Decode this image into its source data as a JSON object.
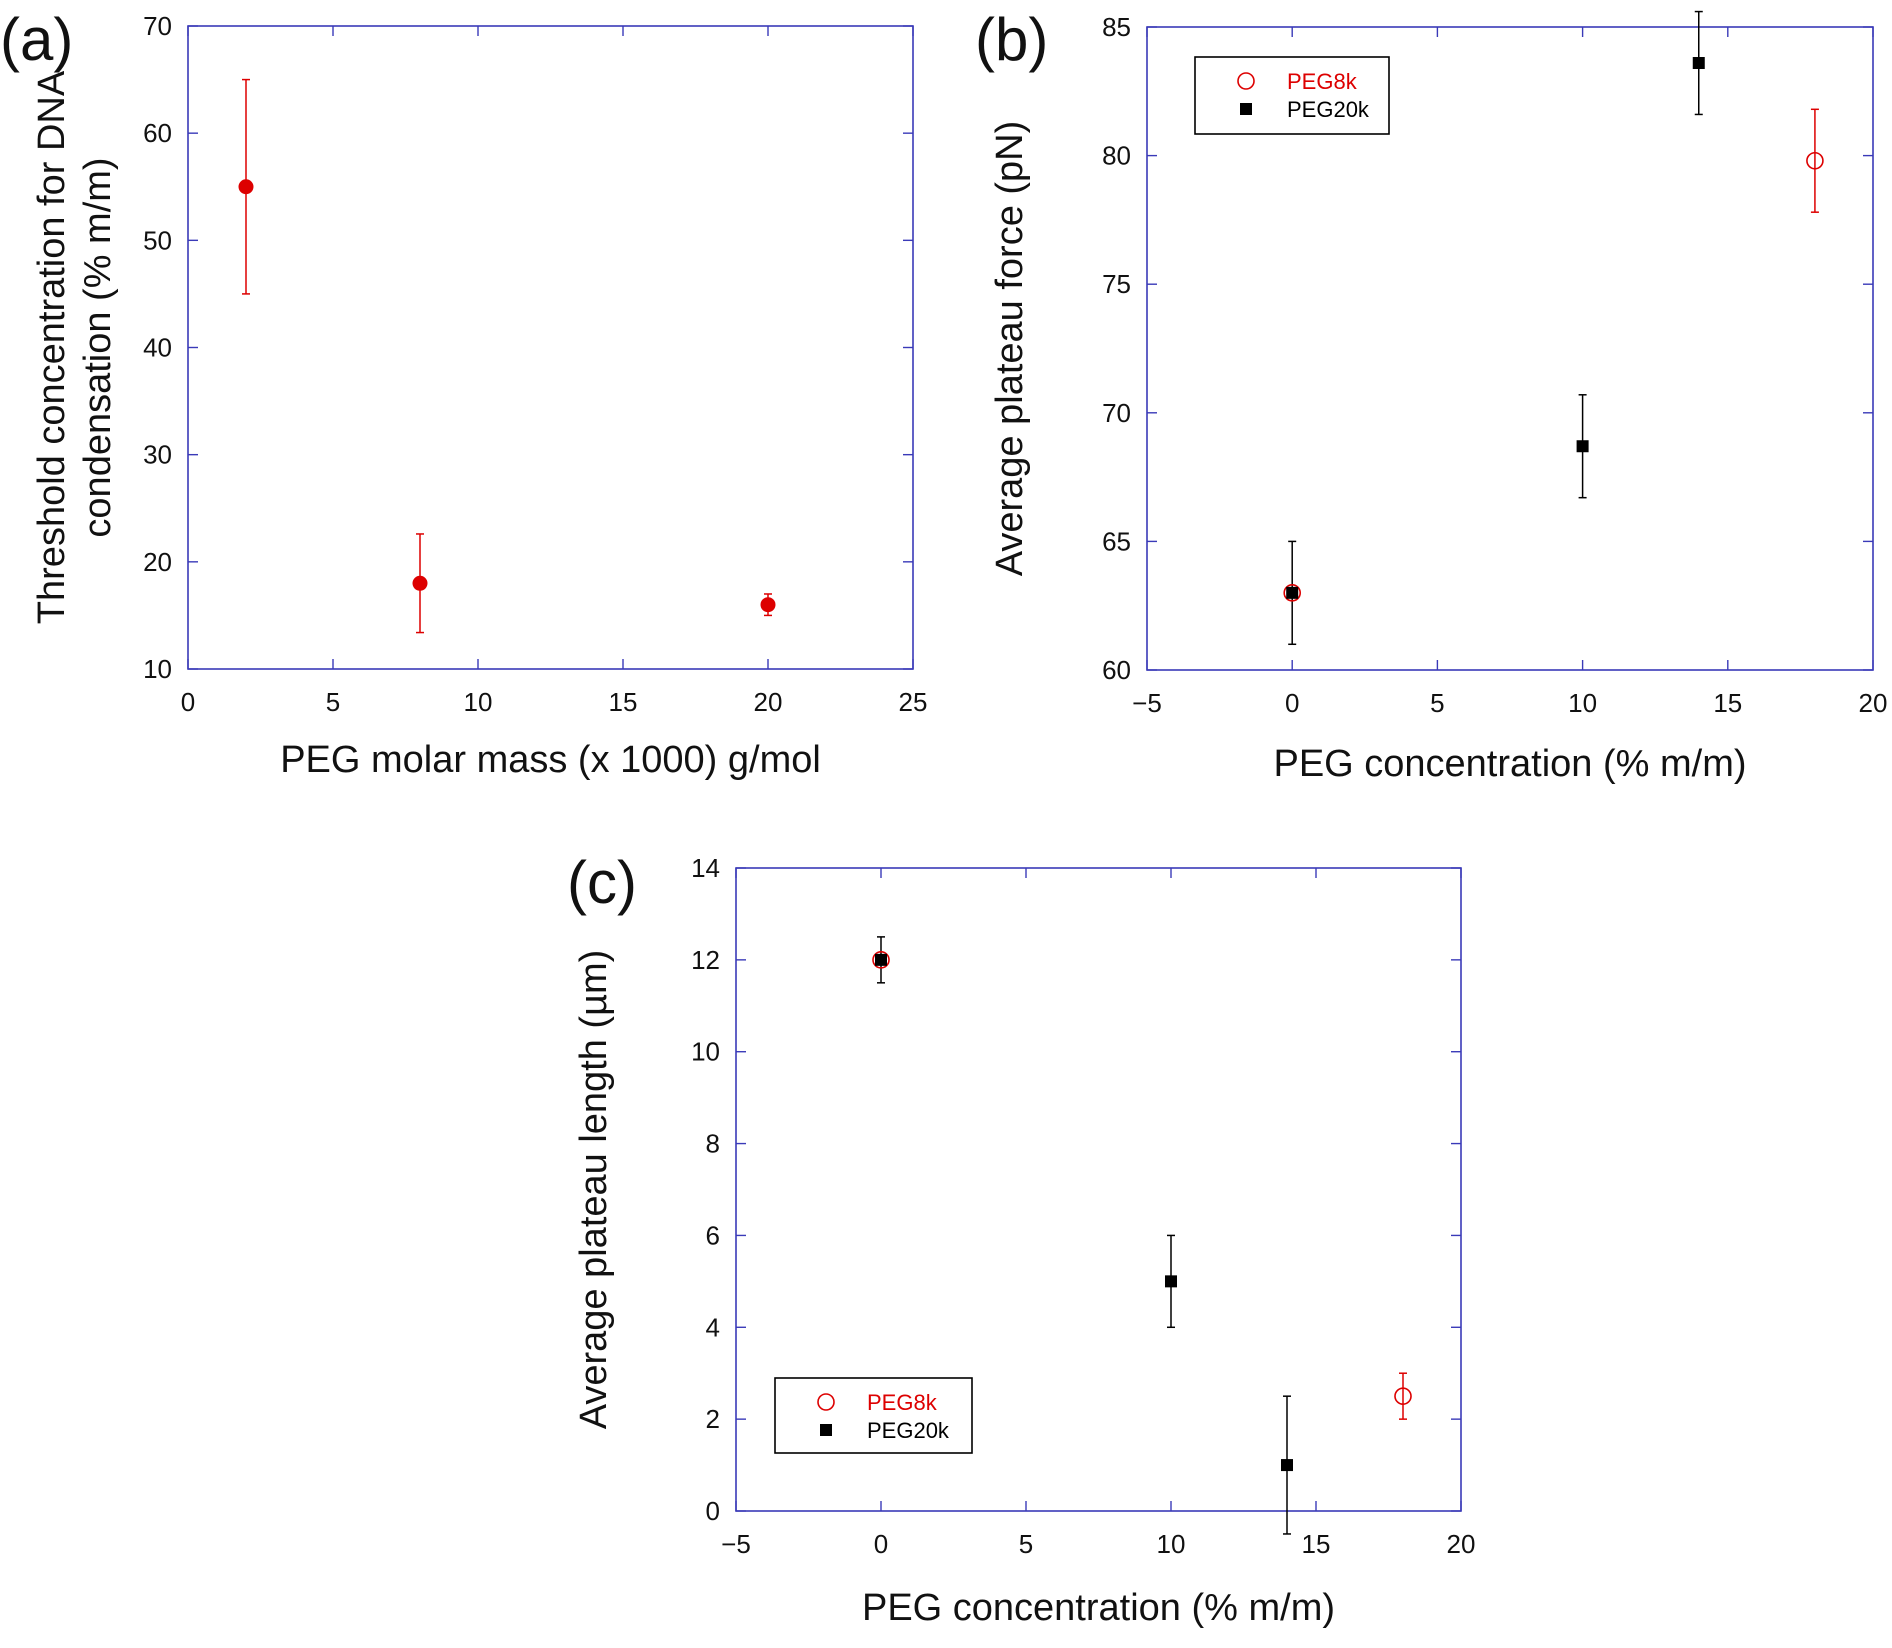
{
  "chart_data": [
    {
      "id": "a",
      "type": "scatter",
      "panel_label": "(a)",
      "xlabel": "PEG molar mass (x 1000) g/mol",
      "ylabel_lines": [
        "Threshold concentration for DNA",
        "condensation (% m/m)"
      ],
      "xlim": [
        0,
        25
      ],
      "ylim": [
        10,
        70
      ],
      "xticks": [
        0,
        5,
        10,
        15,
        20,
        25
      ],
      "yticks": [
        10,
        20,
        30,
        40,
        50,
        60,
        70
      ],
      "grid": false,
      "series": [
        {
          "name": "",
          "marker": "filled-circle",
          "color": "#dd0000",
          "points": [
            {
              "x": 2,
              "y": 55,
              "err": 10
            },
            {
              "x": 8,
              "y": 18,
              "err": 4.6
            },
            {
              "x": 20,
              "y": 16,
              "err": 1
            }
          ]
        }
      ]
    },
    {
      "id": "b",
      "type": "scatter",
      "panel_label": "(b)",
      "xlabel": "PEG concentration (% m/m)",
      "ylabel_lines": [
        "Average plateau force (pN)"
      ],
      "xlim": [
        -5,
        20
      ],
      "ylim": [
        60,
        85
      ],
      "xticks": [
        -5,
        0,
        5,
        10,
        15,
        20
      ],
      "yticks": [
        60,
        65,
        70,
        75,
        80,
        85
      ],
      "grid": false,
      "legend_position": "top-left",
      "series": [
        {
          "name": "PEG8k",
          "marker": "open-circle",
          "color": "#dd0000",
          "points": [
            {
              "x": 0,
              "y": 63,
              "err": 0
            },
            {
              "x": 18,
              "y": 79.8,
              "err": 2
            }
          ]
        },
        {
          "name": "PEG20k",
          "marker": "filled-square",
          "color": "#000000",
          "points": [
            {
              "x": 0,
              "y": 63,
              "err": 2
            },
            {
              "x": 10,
              "y": 68.7,
              "err": 2
            },
            {
              "x": 14,
              "y": 83.6,
              "err": 2
            }
          ]
        }
      ]
    },
    {
      "id": "c",
      "type": "scatter",
      "panel_label": "(c)",
      "xlabel": "PEG concentration (% m/m)",
      "ylabel_lines": [
        "Average plateau length (µm)"
      ],
      "xlim": [
        -5,
        20
      ],
      "ylim": [
        0,
        14
      ],
      "xticks": [
        -5,
        0,
        5,
        10,
        15,
        20
      ],
      "yticks": [
        0,
        2,
        4,
        6,
        8,
        10,
        12,
        14
      ],
      "grid": false,
      "legend_position": "bottom-left",
      "series": [
        {
          "name": "PEG8k",
          "marker": "open-circle",
          "color": "#dd0000",
          "points": [
            {
              "x": 0,
              "y": 12,
              "err": 0
            },
            {
              "x": 18,
              "y": 2.5,
              "err": 0.5
            }
          ]
        },
        {
          "name": "PEG20k",
          "marker": "filled-square",
          "color": "#000000",
          "points": [
            {
              "x": 0,
              "y": 12,
              "err": 0.5
            },
            {
              "x": 10,
              "y": 5,
              "err": 1
            },
            {
              "x": 14,
              "y": 1,
              "err": 1.5
            }
          ]
        }
      ]
    }
  ]
}
